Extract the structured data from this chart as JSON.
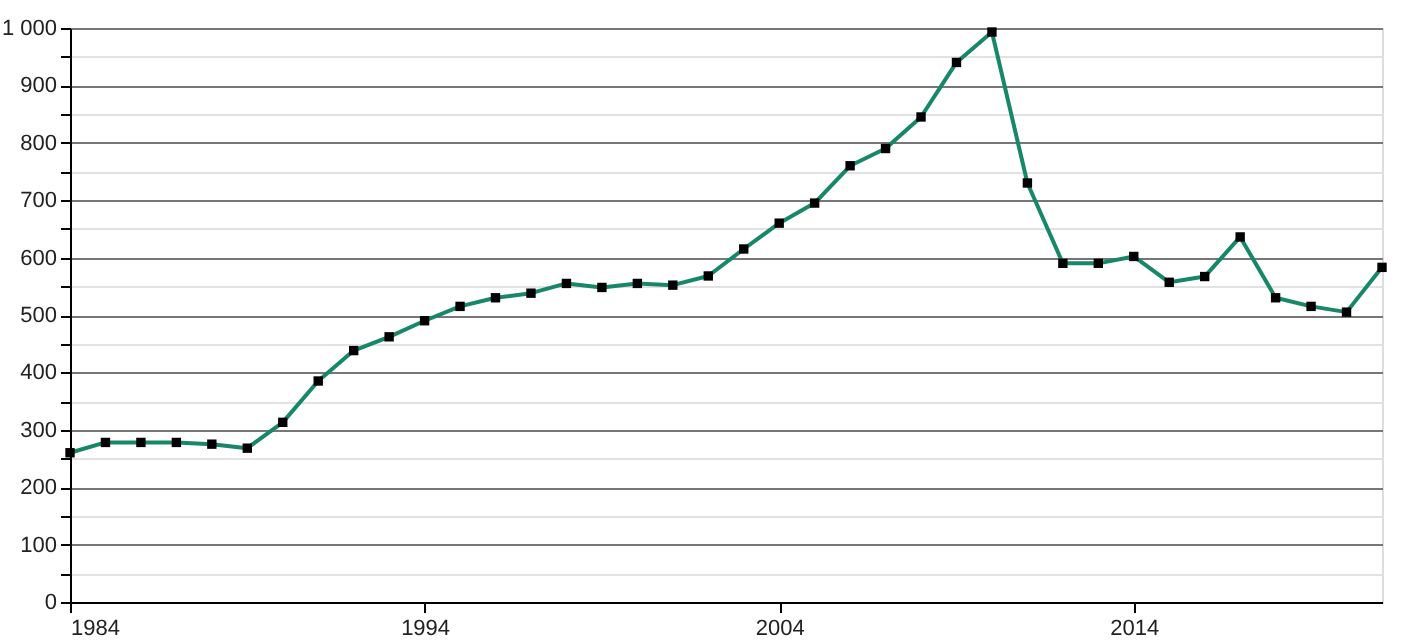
{
  "chart_data": {
    "type": "line",
    "x": [
      1984,
      1985,
      1986,
      1987,
      1988,
      1989,
      1990,
      1991,
      1992,
      1993,
      1994,
      1995,
      1996,
      1997,
      1998,
      1999,
      2000,
      2001,
      2002,
      2003,
      2004,
      2005,
      2006,
      2007,
      2008,
      2009,
      2010,
      2011,
      2012,
      2013,
      2014,
      2015,
      2016,
      2017,
      2018,
      2019,
      2020,
      2021
    ],
    "series": [
      {
        "color": "#17876a",
        "values": [
          260,
          278,
          278,
          278,
          275,
          268,
          313,
          385,
          438,
          462,
          490,
          515,
          530,
          538,
          555,
          548,
          555,
          552,
          568,
          615,
          660,
          695,
          760,
          790,
          845,
          940,
          993,
          730,
          590,
          590,
          602,
          557,
          567,
          636,
          530,
          515,
          505,
          583
        ]
      }
    ],
    "xlim": [
      1984,
      2021
    ],
    "xticks": [
      1984,
      1994,
      2004,
      2014
    ],
    "ylim": [
      0,
      1000
    ],
    "yticks": [
      0,
      {
        "value": 50,
        "label": null
      },
      100,
      {
        "value": 150,
        "label": null
      },
      200,
      {
        "value": 250,
        "label": null
      },
      300,
      {
        "value": 350,
        "label": null
      },
      400,
      {
        "value": 450,
        "label": null
      },
      500,
      {
        "value": 550,
        "label": null
      },
      600,
      {
        "value": 650,
        "label": null
      },
      700,
      {
        "value": 750,
        "label": null
      },
      800,
      {
        "value": 850,
        "label": null
      },
      900,
      {
        "value": 950,
        "label": null
      },
      {
        "value": 1000,
        "label": "1 000"
      }
    ],
    "grid": "y",
    "marker": "square",
    "line_style": "solid"
  }
}
